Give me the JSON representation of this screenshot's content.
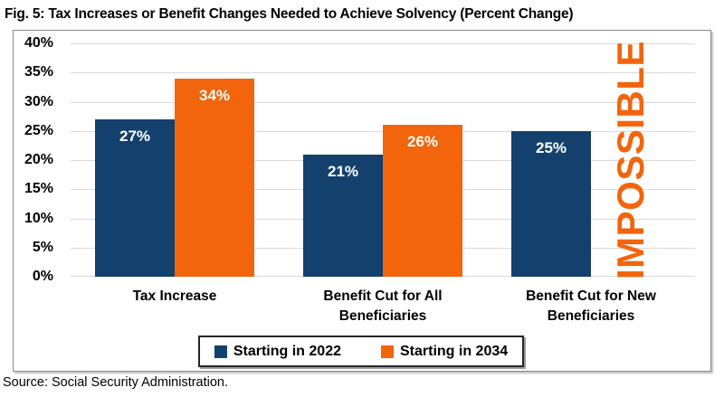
{
  "figure": {
    "title": "Fig. 5: Tax Increases or Benefit Changes Needed to Achieve Solvency (Percent Change)",
    "source": "Source: Social Security Administration."
  },
  "chart_data": {
    "type": "bar",
    "title": "Fig. 5: Tax Increases or Benefit Changes Needed to Achieve Solvency (Percent Change)",
    "categories": [
      "Tax Increase",
      "Benefit Cut for All\nBeneficiaries",
      "Benefit Cut for New\nBeneficiaries"
    ],
    "series": [
      {
        "name": "Starting in 2022",
        "color": "#14406D",
        "values": [
          27,
          21,
          25
        ]
      },
      {
        "name": "Starting in 2034",
        "color": "#F2650D",
        "values": [
          34,
          26,
          null
        ]
      }
    ],
    "value_suffix": "%",
    "data_labels": [
      "27%",
      "34%",
      "21%",
      "26%",
      "25%"
    ],
    "ylim": [
      0,
      40
    ],
    "ytick_step": 5,
    "ytick_labels": [
      "0%",
      "5%",
      "10%",
      "15%",
      "20%",
      "25%",
      "30%",
      "35%",
      "40%"
    ],
    "grid": true,
    "legend_position": "bottom",
    "annotations": [
      {
        "text": "IMPOSSIBLE",
        "category_index": 2,
        "series_index": 1,
        "color": "#F2650D"
      }
    ],
    "colors": {
      "gridline": "#d9d9d9",
      "bar_label_text": "#ffffff",
      "axis_text": "#000000"
    }
  }
}
